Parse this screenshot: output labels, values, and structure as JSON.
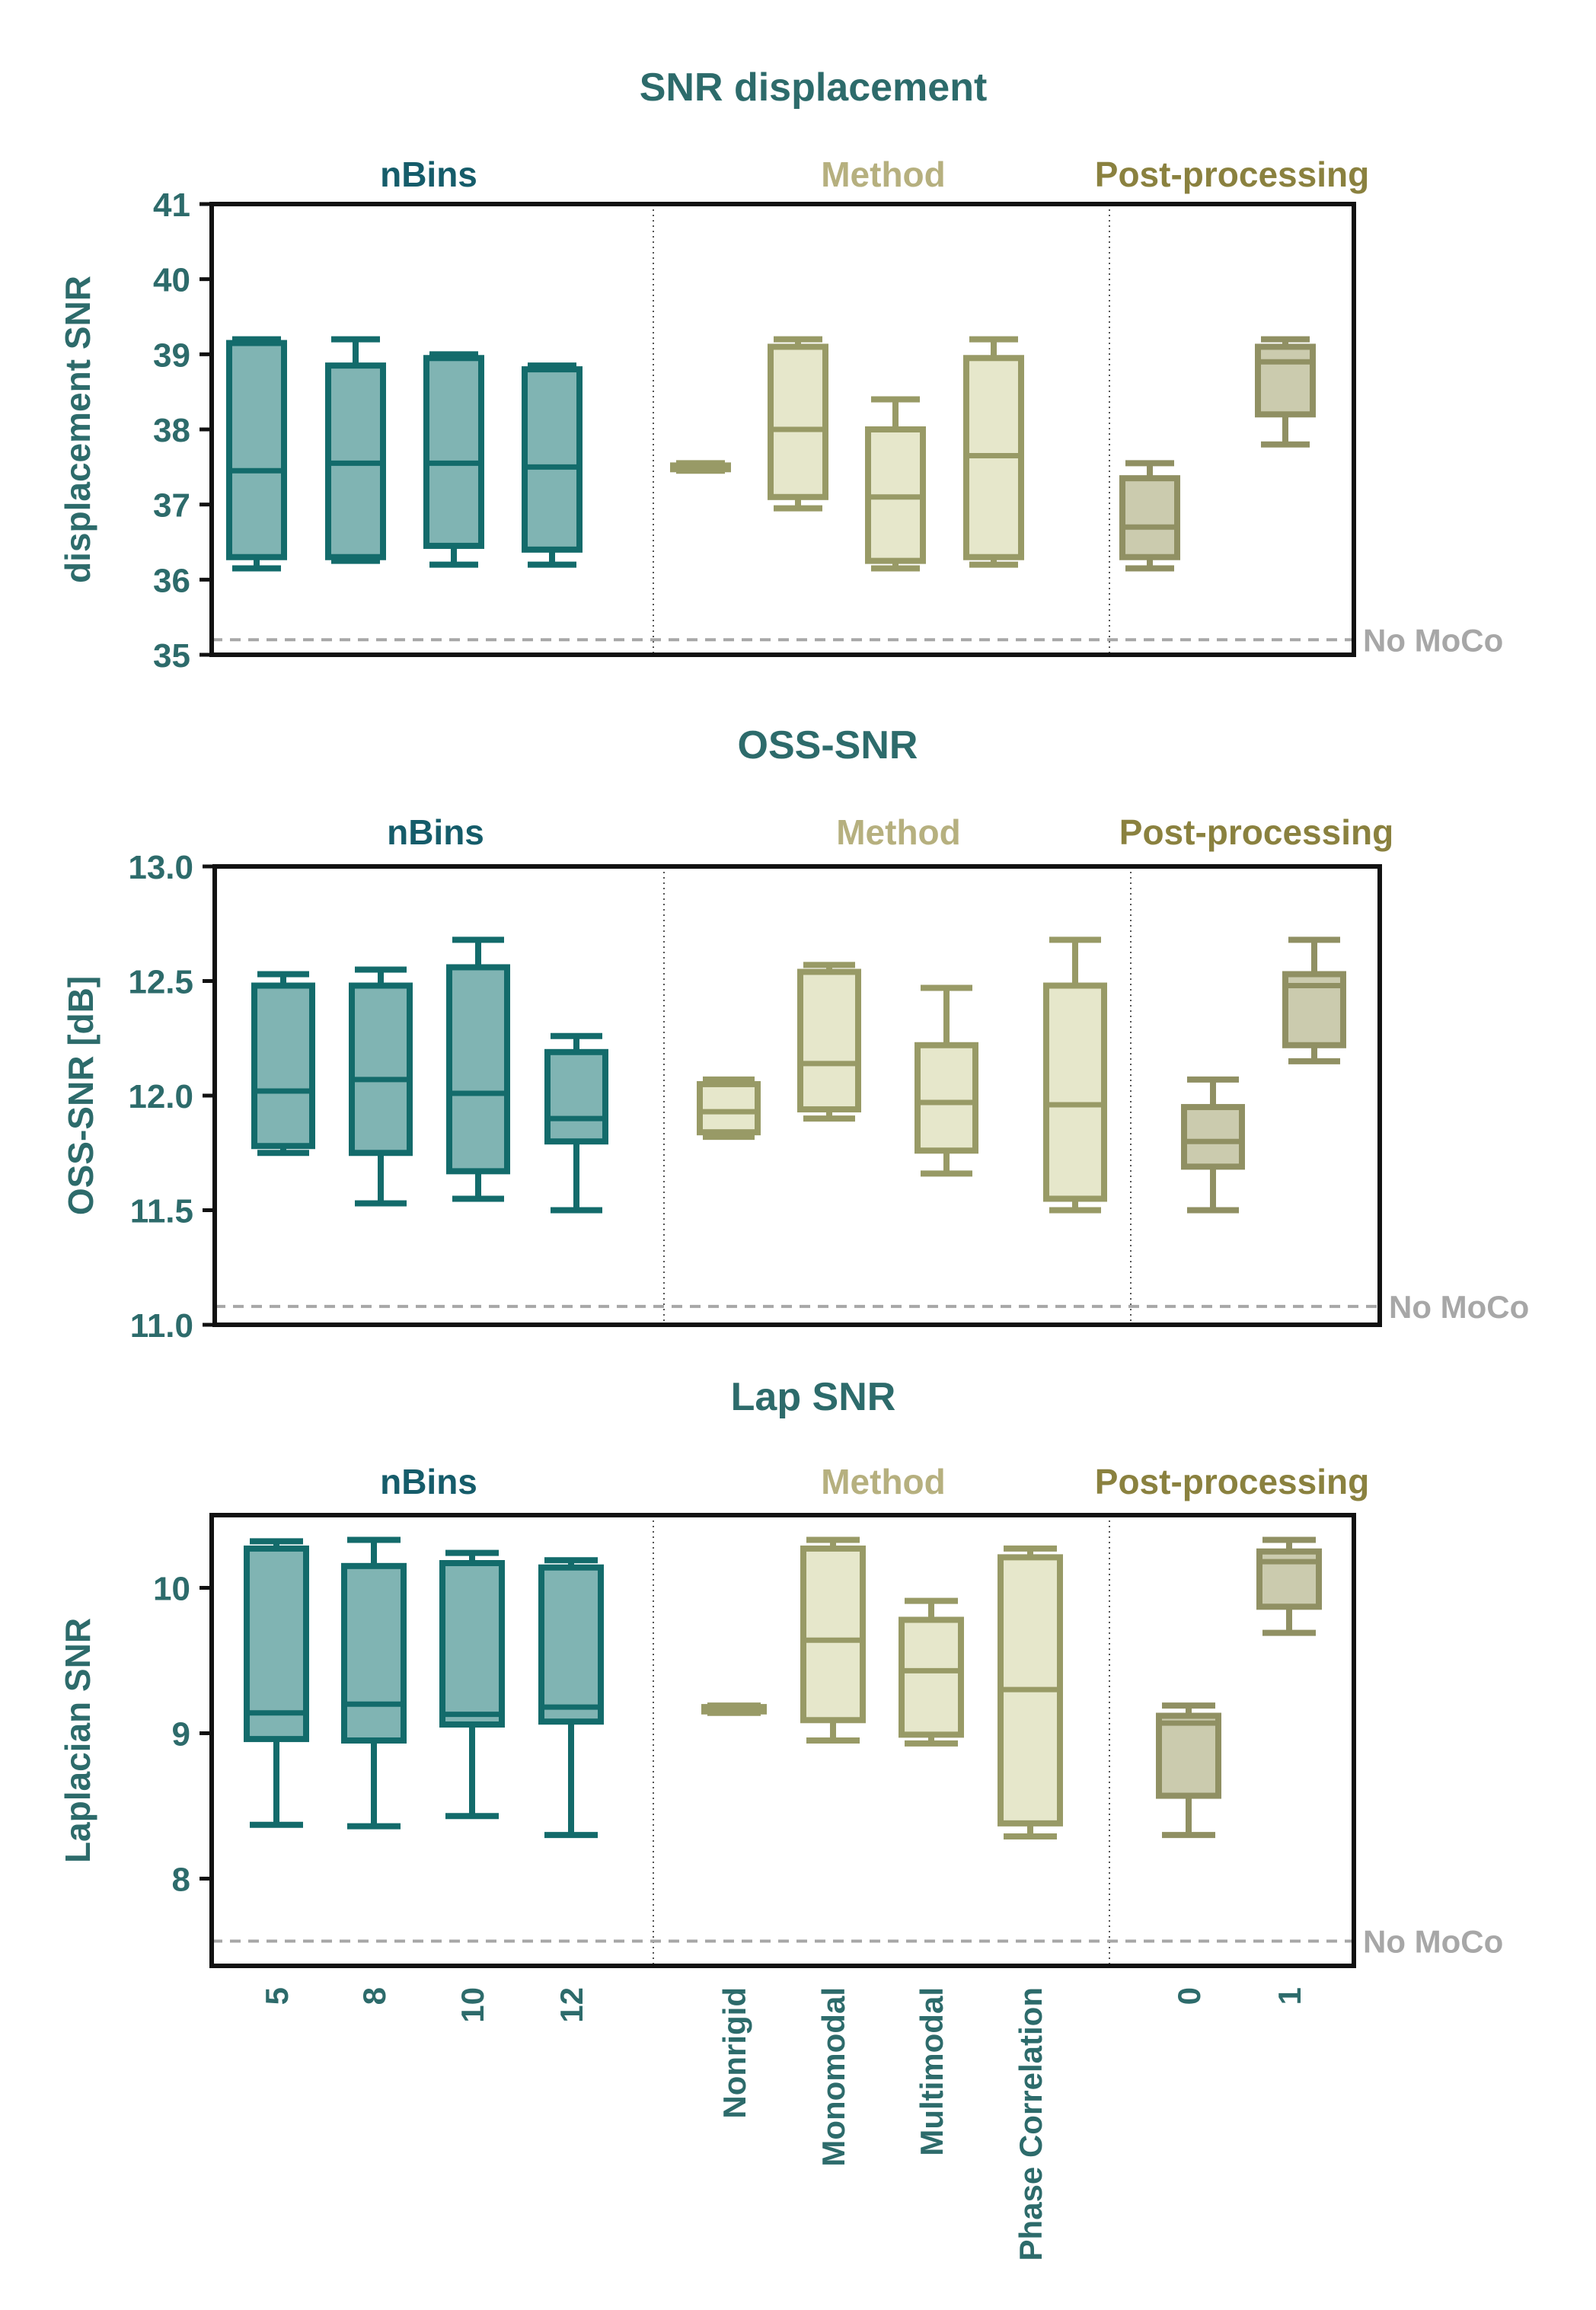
{
  "colors": {
    "axis_text": "#2d6b6b",
    "nbins_edge": "#136b6b",
    "nbins_fill": "#80b4b3",
    "method_edge": "#989a66",
    "method_fill": "#e6e7cb",
    "method_header": "#b6b07f",
    "post_edge": "#909063",
    "post_fill": "#cbcbae",
    "post_header": "#8a813f",
    "nbins_header": "#155c6a",
    "nomoco": "#a7a7a7",
    "axes": "#111111",
    "divider": "#555555"
  },
  "group_headers": {
    "nbins": "nBins",
    "method": "Method",
    "post": "Post-processing"
  },
  "nomoco_label": "No MoCo",
  "x_tick_labels": [
    "5",
    "8",
    "10",
    "12",
    "Nonrigid",
    "Monomodal",
    "Multimodal",
    "Phase Correlation",
    "0",
    "1"
  ],
  "chart_data": [
    {
      "type": "box",
      "title": "SNR displacement",
      "ylabel": "displacement SNR",
      "ylim": [
        35,
        41
      ],
      "yticks": [
        35,
        36,
        37,
        38,
        39,
        40,
        41
      ],
      "nomoco_value": 35.2,
      "categories": [
        "5",
        "8",
        "10",
        "12",
        "Nonrigid",
        "Monomodal",
        "Multimodal",
        "Phase Correlation",
        "0",
        "1"
      ],
      "groups": [
        "nbins",
        "nbins",
        "nbins",
        "nbins",
        "method",
        "method",
        "method",
        "method",
        "post",
        "post"
      ],
      "boxes": [
        {
          "min": 36.15,
          "q1": 36.3,
          "median": 37.45,
          "q3": 39.15,
          "max": 39.2
        },
        {
          "min": 36.25,
          "q1": 36.3,
          "median": 37.55,
          "q3": 38.85,
          "max": 39.2
        },
        {
          "min": 36.2,
          "q1": 36.45,
          "median": 37.55,
          "q3": 38.95,
          "max": 39.0
        },
        {
          "min": 36.2,
          "q1": 36.4,
          "median": 37.5,
          "q3": 38.8,
          "max": 38.85
        },
        {
          "min": 37.45,
          "q1": 37.47,
          "median": 37.5,
          "q3": 37.52,
          "max": 37.55
        },
        {
          "min": 36.95,
          "q1": 37.1,
          "median": 38.0,
          "q3": 39.1,
          "max": 39.2
        },
        {
          "min": 36.15,
          "q1": 36.25,
          "median": 37.1,
          "q3": 38.0,
          "max": 38.4
        },
        {
          "min": 36.2,
          "q1": 36.3,
          "median": 37.65,
          "q3": 38.95,
          "max": 39.2
        },
        {
          "min": 36.15,
          "q1": 36.3,
          "median": 36.7,
          "q3": 37.35,
          "max": 37.55
        },
        {
          "min": 37.8,
          "q1": 38.2,
          "median": 38.9,
          "q3": 39.1,
          "max": 39.2
        }
      ]
    },
    {
      "type": "box",
      "title": "OSS-SNR",
      "ylabel": "OSS-SNR [dB]",
      "ylim": [
        11.0,
        13.0
      ],
      "yticks": [
        11.0,
        11.5,
        12.0,
        12.5,
        13.0
      ],
      "nomoco_value": 11.08,
      "categories": [
        "5",
        "8",
        "10",
        "12",
        "Nonrigid",
        "Monomodal",
        "Multimodal",
        "Phase Correlation",
        "0",
        "1"
      ],
      "groups": [
        "nbins",
        "nbins",
        "nbins",
        "nbins",
        "method",
        "method",
        "method",
        "method",
        "post",
        "post"
      ],
      "boxes": [
        {
          "min": 11.75,
          "q1": 11.78,
          "median": 12.02,
          "q3": 12.48,
          "max": 12.53
        },
        {
          "min": 11.53,
          "q1": 11.75,
          "median": 12.07,
          "q3": 12.48,
          "max": 12.55
        },
        {
          "min": 11.55,
          "q1": 11.67,
          "median": 12.01,
          "q3": 12.56,
          "max": 12.68
        },
        {
          "min": 11.5,
          "q1": 11.8,
          "median": 11.9,
          "q3": 12.19,
          "max": 12.26
        },
        {
          "min": 11.82,
          "q1": 11.84,
          "median": 11.93,
          "q3": 12.05,
          "max": 12.07
        },
        {
          "min": 11.9,
          "q1": 11.94,
          "median": 12.14,
          "q3": 12.54,
          "max": 12.57
        },
        {
          "min": 11.66,
          "q1": 11.76,
          "median": 11.97,
          "q3": 12.22,
          "max": 12.47
        },
        {
          "min": 11.5,
          "q1": 11.55,
          "median": 11.96,
          "q3": 12.48,
          "max": 12.68
        },
        {
          "min": 11.5,
          "q1": 11.69,
          "median": 11.8,
          "q3": 11.95,
          "max": 12.07
        },
        {
          "min": 12.15,
          "q1": 12.22,
          "median": 12.48,
          "q3": 12.53,
          "max": 12.68
        }
      ]
    },
    {
      "type": "box",
      "title": "Lap SNR",
      "ylabel": "Laplacian SNR",
      "ylim": [
        7.4,
        10.5
      ],
      "yticks": [
        8,
        9,
        10
      ],
      "nomoco_value": 7.57,
      "categories": [
        "5",
        "8",
        "10",
        "12",
        "Nonrigid",
        "Monomodal",
        "Multimodal",
        "Phase Correlation",
        "0",
        "1"
      ],
      "groups": [
        "nbins",
        "nbins",
        "nbins",
        "nbins",
        "method",
        "method",
        "method",
        "method",
        "post",
        "post"
      ],
      "boxes": [
        {
          "min": 8.37,
          "q1": 8.96,
          "median": 9.14,
          "q3": 10.27,
          "max": 10.32
        },
        {
          "min": 8.36,
          "q1": 8.95,
          "median": 9.2,
          "q3": 10.15,
          "max": 10.33
        },
        {
          "min": 8.43,
          "q1": 9.06,
          "median": 9.13,
          "q3": 10.17,
          "max": 10.24
        },
        {
          "min": 8.3,
          "q1": 9.08,
          "median": 9.18,
          "q3": 10.14,
          "max": 10.19
        },
        {
          "min": 9.14,
          "q1": 9.15,
          "median": 9.17,
          "q3": 9.18,
          "max": 9.19
        },
        {
          "min": 8.95,
          "q1": 9.09,
          "median": 9.64,
          "q3": 10.27,
          "max": 10.33
        },
        {
          "min": 8.93,
          "q1": 8.99,
          "median": 9.43,
          "q3": 9.78,
          "max": 9.91
        },
        {
          "min": 8.29,
          "q1": 8.38,
          "median": 9.3,
          "q3": 10.21,
          "max": 10.27
        },
        {
          "min": 8.3,
          "q1": 8.57,
          "median": 9.07,
          "q3": 9.12,
          "max": 9.19
        },
        {
          "min": 9.69,
          "q1": 9.87,
          "median": 10.18,
          "q3": 10.25,
          "max": 10.33
        }
      ]
    }
  ]
}
